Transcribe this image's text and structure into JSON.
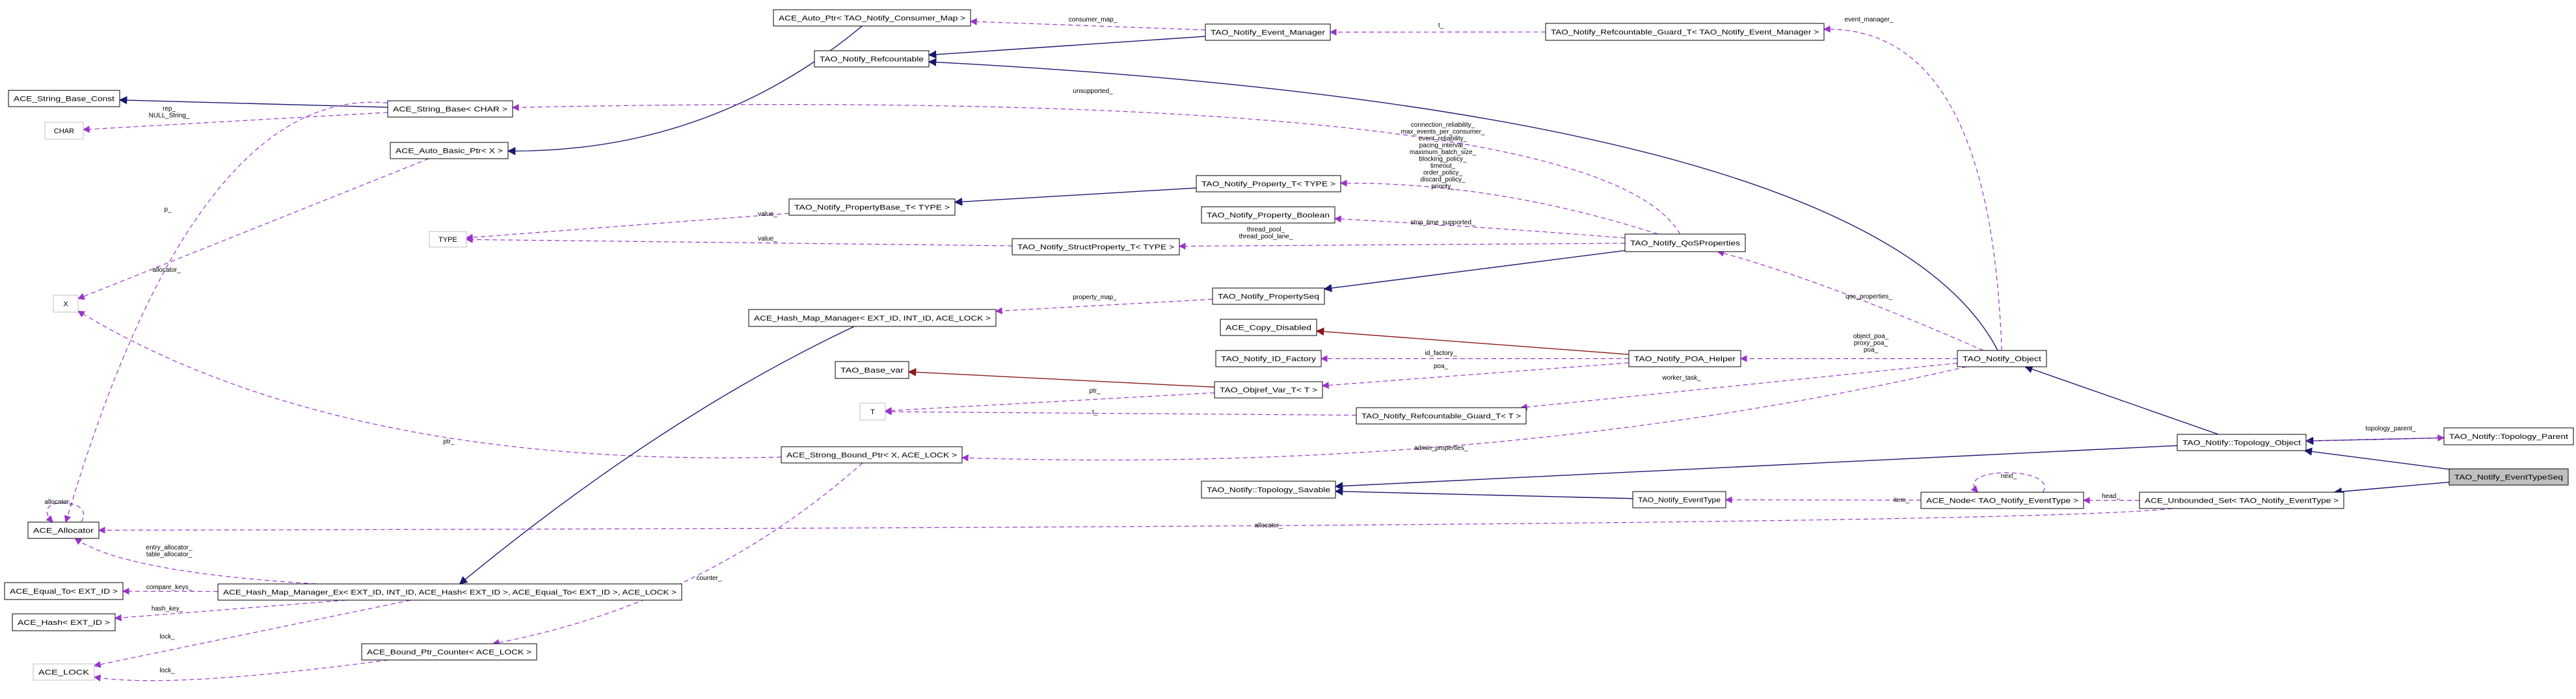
{
  "colors": {
    "inherit": "#191970",
    "member": "#9a32cd",
    "private_inherit": "#8b1a1a",
    "highlight_fill": "#bfbfbf",
    "undocumented_border": "#bfbfbf"
  },
  "nodes": [
    {
      "id": "autoptr",
      "label": "ACE_Auto_Ptr< TAO_Notify_Consumer_Map >"
    },
    {
      "id": "evmgr",
      "label": "TAO_Notify_Event_Manager"
    },
    {
      "id": "refc",
      "label": "TAO_Notify_Refcountable"
    },
    {
      "id": "guardEM",
      "label": "TAO_Notify_Refcountable_Guard_T< TAO_Notify_Event_Manager >"
    },
    {
      "id": "sbconst",
      "label": "ACE_String_Base_Const"
    },
    {
      "id": "sbase",
      "label": "ACE_String_Base< CHAR >"
    },
    {
      "id": "char",
      "label": "CHAR",
      "undocumented": true
    },
    {
      "id": "abptr",
      "label": "ACE_Auto_Basic_Ptr< X >"
    },
    {
      "id": "propT",
      "label": "TAO_Notify_Property_T< TYPE >"
    },
    {
      "id": "propBase",
      "label": "TAO_Notify_PropertyBase_T< TYPE >"
    },
    {
      "id": "propBool",
      "label": "TAO_Notify_Property_Boolean"
    },
    {
      "id": "structProp",
      "label": "TAO_Notify_StructProperty_T< TYPE >"
    },
    {
      "id": "type",
      "label": "TYPE",
      "undocumented": true
    },
    {
      "id": "x",
      "label": "X",
      "undocumented": true
    },
    {
      "id": "qos",
      "label": "TAO_Notify_QoSProperties"
    },
    {
      "id": "pseq",
      "label": "TAO_Notify_PropertySeq"
    },
    {
      "id": "hmm",
      "label": "ACE_Hash_Map_Manager< EXT_ID, INT_ID, ACE_LOCK >"
    },
    {
      "id": "copyd",
      "label": "ACE_Copy_Disabled"
    },
    {
      "id": "idf",
      "label": "TAO_Notify_ID_Factory"
    },
    {
      "id": "poah",
      "label": "TAO_Notify_POA_Helper"
    },
    {
      "id": "nobj",
      "label": "TAO_Notify_Object"
    },
    {
      "id": "basevar",
      "label": "TAO_Base_var"
    },
    {
      "id": "objref",
      "label": "TAO_Objref_Var_T< T >"
    },
    {
      "id": "t",
      "label": "T",
      "undocumented": true
    },
    {
      "id": "guardT",
      "label": "TAO_Notify_Refcountable_Guard_T< T >"
    },
    {
      "id": "sbp",
      "label": "ACE_Strong_Bound_Ptr< X, ACE_LOCK >"
    },
    {
      "id": "topoObj",
      "label": "TAO_Notify::Topology_Object"
    },
    {
      "id": "topoParent",
      "label": "TAO_Notify::Topology_Parent"
    },
    {
      "id": "ets",
      "label": "TAO_Notify_EventTypeSeq",
      "highlighted": true
    },
    {
      "id": "node",
      "label": "ACE_Node< TAO_Notify_EventType >"
    },
    {
      "id": "uset",
      "label": "ACE_Unbounded_Set< TAO_Notify_EventType >"
    },
    {
      "id": "savable",
      "label": "TAO_Notify::Topology_Savable"
    },
    {
      "id": "evtype",
      "label": "TAO_Notify_EventType"
    },
    {
      "id": "alloc",
      "label": "ACE_Allocator"
    },
    {
      "id": "eqto",
      "label": "ACE_Equal_To< EXT_ID >"
    },
    {
      "id": "hmmex",
      "label": "ACE_Hash_Map_Manager_Ex< EXT_ID, INT_ID, ACE_Hash< EXT_ID >, ACE_Equal_To< EXT_ID >, ACE_LOCK >"
    },
    {
      "id": "hash",
      "label": "ACE_Hash< EXT_ID >"
    },
    {
      "id": "bpc",
      "label": "ACE_Bound_Ptr_Counter< ACE_LOCK >"
    },
    {
      "id": "lock",
      "label": "ACE_LOCK",
      "undocumented": true
    }
  ],
  "edges": [
    {
      "from": "sbase",
      "to": "sbconst",
      "kind": "inherit",
      "label": []
    },
    {
      "from": "sbase",
      "to": "char",
      "kind": "member",
      "label": [
        "rep_",
        "NULL_String_"
      ]
    },
    {
      "from": "sbase",
      "to": "alloc",
      "kind": "member",
      "label": [
        "allocator_"
      ]
    },
    {
      "from": "autoptr",
      "to": "abptr",
      "kind": "inherit",
      "label": []
    },
    {
      "from": "abptr",
      "to": "x",
      "kind": "member",
      "label": [
        "p_"
      ]
    },
    {
      "from": "evmgr",
      "to": "refc",
      "kind": "inherit",
      "label": []
    },
    {
      "from": "nobj",
      "to": "refc",
      "kind": "inherit",
      "label": []
    },
    {
      "from": "evmgr",
      "to": "autoptr",
      "kind": "member",
      "label": [
        "consumer_map_"
      ]
    },
    {
      "from": "guardEM",
      "to": "evmgr",
      "kind": "member",
      "label": [
        "t_"
      ]
    },
    {
      "from": "nobj",
      "to": "guardEM",
      "kind": "member",
      "label": [
        "event_manager_"
      ]
    },
    {
      "from": "qos",
      "to": "sbase",
      "kind": "member",
      "label": [
        "unsupported_"
      ]
    },
    {
      "from": "qos",
      "to": "propT",
      "kind": "member",
      "label": [
        "connection_reliability_",
        "max_events_per_consumer_",
        "event_reliability_",
        "pacing_interval_",
        "maximum_batch_size_",
        "blocking_policy_",
        "timeout_",
        "order_policy_",
        "discard_policy_",
        "priority_"
      ]
    },
    {
      "from": "propT",
      "to": "propBase",
      "kind": "inherit",
      "label": []
    },
    {
      "from": "propBase",
      "to": "type",
      "kind": "member",
      "label": [
        "value_"
      ]
    },
    {
      "from": "structProp",
      "to": "type",
      "kind": "member",
      "label": [
        "value_"
      ]
    },
    {
      "from": "qos",
      "to": "propBool",
      "kind": "member",
      "label": [
        "stop_time_supported_"
      ]
    },
    {
      "from": "qos",
      "to": "structProp",
      "kind": "member",
      "label": [
        "thread_pool_",
        "thread_pool_lane_"
      ]
    },
    {
      "from": "qos",
      "to": "pseq",
      "kind": "inherit",
      "label": []
    },
    {
      "from": "pseq",
      "to": "hmm",
      "kind": "member",
      "label": [
        "property_map_"
      ]
    },
    {
      "from": "nobj",
      "to": "qos",
      "kind": "member",
      "label": [
        "qos_properties_"
      ]
    },
    {
      "from": "poah",
      "to": "copyd",
      "kind": "private_inherit",
      "label": []
    },
    {
      "from": "poah",
      "to": "idf",
      "kind": "member",
      "label": [
        "id_factory_"
      ]
    },
    {
      "from": "poah",
      "to": "objref",
      "kind": "member",
      "label": [
        "poa_"
      ]
    },
    {
      "from": "nobj",
      "to": "poah",
      "kind": "member",
      "label": [
        "object_poa_",
        "proxy_poa_",
        "poa_"
      ]
    },
    {
      "from": "objref",
      "to": "basevar",
      "kind": "private_inherit",
      "label": []
    },
    {
      "from": "objref",
      "to": "t",
      "kind": "member",
      "label": [
        "ptr_"
      ]
    },
    {
      "from": "guardT",
      "to": "t",
      "kind": "member",
      "label": [
        "t_"
      ]
    },
    {
      "from": "nobj",
      "to": "guardT",
      "kind": "member",
      "label": [
        "worker_task_"
      ]
    },
    {
      "from": "nobj",
      "to": "sbp",
      "kind": "member",
      "label": [
        "admin_properties_"
      ]
    },
    {
      "from": "topoObj",
      "to": "nobj",
      "kind": "inherit",
      "label": []
    },
    {
      "from": "sbp",
      "to": "x",
      "kind": "member",
      "label": [
        "ptr_"
      ]
    },
    {
      "from": "topoObj",
      "to": "savable",
      "kind": "inherit",
      "label": []
    },
    {
      "from": "evtype",
      "to": "savable",
      "kind": "inherit",
      "label": []
    },
    {
      "from": "topoParent",
      "to": "topoObj",
      "kind": "inherit",
      "label": []
    },
    {
      "from": "topoObj",
      "to": "topoParent",
      "kind": "member",
      "label": [
        "topology_parent_"
      ]
    },
    {
      "from": "ets",
      "to": "topoObj",
      "kind": "inherit",
      "label": []
    },
    {
      "from": "ets",
      "to": "uset",
      "kind": "inherit",
      "label": []
    },
    {
      "from": "uset",
      "to": "node",
      "kind": "member",
      "label": [
        "head_"
      ]
    },
    {
      "from": "node",
      "to": "node",
      "kind": "member",
      "label": [
        "next_"
      ]
    },
    {
      "from": "node",
      "to": "evtype",
      "kind": "member",
      "label": [
        "item_"
      ]
    },
    {
      "from": "uset",
      "to": "alloc",
      "kind": "member",
      "label": [
        "allocator_"
      ]
    },
    {
      "from": "hmm",
      "to": "hmmex",
      "kind": "inherit",
      "label": []
    },
    {
      "from": "hmmex",
      "to": "alloc",
      "kind": "member",
      "label": [
        "entry_allocator_",
        "table_allocator_"
      ]
    },
    {
      "from": "hmmex",
      "to": "eqto",
      "kind": "member",
      "label": [
        "compare_keys_"
      ]
    },
    {
      "from": "hmmex",
      "to": "hash",
      "kind": "member",
      "label": [
        "hash_key_"
      ]
    },
    {
      "from": "hmmex",
      "to": "lock",
      "kind": "member",
      "label": [
        "lock_"
      ]
    },
    {
      "from": "bpc",
      "to": "lock",
      "kind": "member",
      "label": [
        "lock_"
      ]
    },
    {
      "from": "sbp",
      "to": "bpc",
      "kind": "member",
      "label": [
        "counter_"
      ]
    },
    {
      "from": "alloc",
      "to": "alloc",
      "kind": "member",
      "label": [
        "allocator_"
      ]
    }
  ]
}
